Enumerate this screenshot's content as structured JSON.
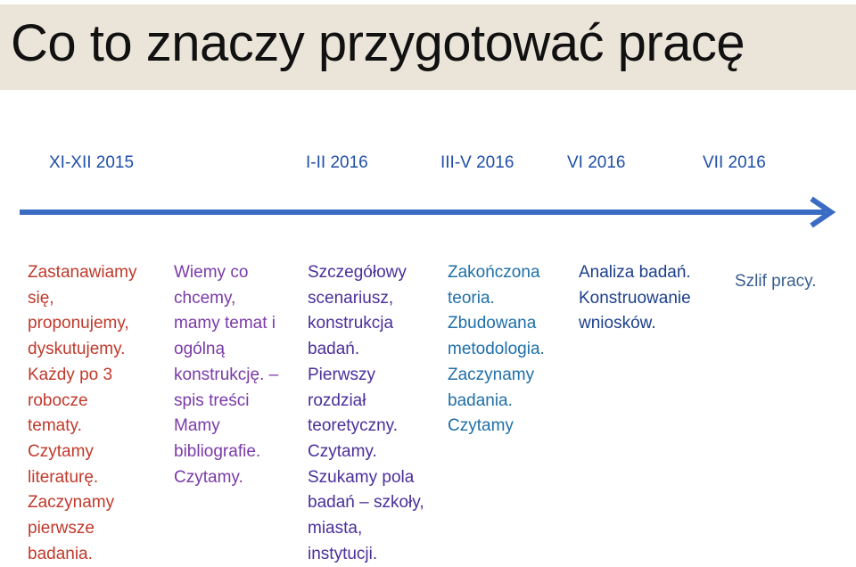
{
  "slide": {
    "title": "Co to znaczy przygotować pracę"
  },
  "timeline": {
    "periods": [
      "XI-XII 2015",
      "I-II 2016",
      "III-V 2016",
      "VI 2016",
      "VII 2016"
    ]
  },
  "columns": [
    {
      "lines": [
        "Zastanawiamy",
        "się,",
        "proponujemy,",
        "dyskutujemy.",
        "Każdy po 3",
        "robocze",
        "tematy.",
        "Czytamy",
        "literaturę.",
        "Zaczynamy",
        "pierwsze",
        "badania."
      ]
    },
    {
      "lines": [
        "Wiemy co",
        "chcemy,",
        "mamy temat i",
        "ogólną",
        "konstrukcję. –",
        "spis treści",
        "Mamy",
        "bibliografie.",
        "Czytamy."
      ]
    },
    {
      "lines": [
        "Szczegółowy",
        "scenariusz,",
        "konstrukcja",
        "badań.",
        "Pierwszy",
        "rozdział",
        "teoretyczny.",
        "Czytamy.",
        "Szukamy pola",
        "badań – szkoły,",
        "miasta,",
        "instytucji."
      ]
    },
    {
      "lines": [
        "Zakończona",
        "teoria.",
        "Zbudowana",
        "metodologia.",
        "Zaczynamy",
        "badania.",
        "Czytamy"
      ]
    },
    {
      "lines": [
        "Analiza badań.",
        "Konstruowanie",
        "wniosków."
      ]
    },
    {
      "lines": [
        "Szlif pracy."
      ]
    }
  ],
  "colors": {
    "title_band": "#ebe4d8",
    "arrow": "#3b6cc4",
    "periods": "#1f4fa8"
  }
}
